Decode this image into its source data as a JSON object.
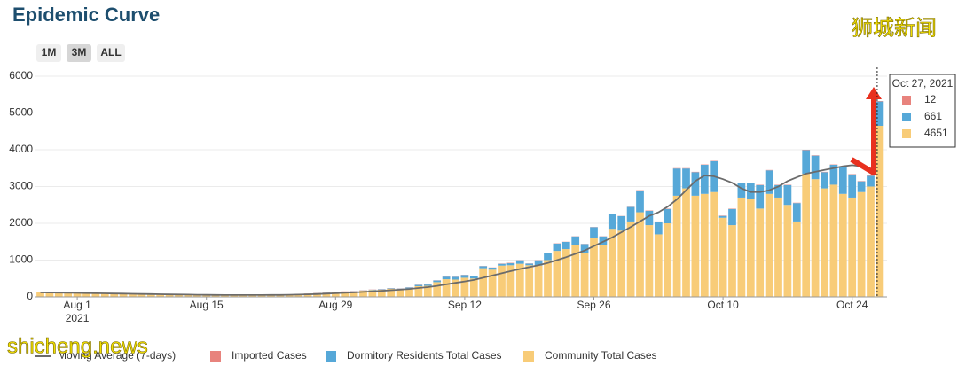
{
  "chart_data": {
    "type": "bar",
    "title": "Epidemic Curve",
    "controls": [
      "1M",
      "3M",
      "ALL"
    ],
    "active_control": 1,
    "watermark_top": "狮城新闻",
    "watermark_bottom": "shicheng.news",
    "categories": [
      "2021-07-28",
      "2021-07-29",
      "2021-07-30",
      "2021-07-31",
      "2021-08-01",
      "2021-08-02",
      "2021-08-03",
      "2021-08-04",
      "2021-08-05",
      "2021-08-06",
      "2021-08-07",
      "2021-08-08",
      "2021-08-09",
      "2021-08-10",
      "2021-08-11",
      "2021-08-12",
      "2021-08-13",
      "2021-08-14",
      "2021-08-15",
      "2021-08-16",
      "2021-08-17",
      "2021-08-18",
      "2021-08-19",
      "2021-08-20",
      "2021-08-21",
      "2021-08-22",
      "2021-08-23",
      "2021-08-24",
      "2021-08-25",
      "2021-08-26",
      "2021-08-27",
      "2021-08-28",
      "2021-08-29",
      "2021-08-30",
      "2021-08-31",
      "2021-09-01",
      "2021-09-02",
      "2021-09-03",
      "2021-09-04",
      "2021-09-05",
      "2021-09-06",
      "2021-09-07",
      "2021-09-08",
      "2021-09-09",
      "2021-09-10",
      "2021-09-11",
      "2021-09-12",
      "2021-09-13",
      "2021-09-14",
      "2021-09-15",
      "2021-09-16",
      "2021-09-17",
      "2021-09-18",
      "2021-09-19",
      "2021-09-20",
      "2021-09-21",
      "2021-09-22",
      "2021-09-23",
      "2021-09-24",
      "2021-09-25",
      "2021-09-26",
      "2021-09-27",
      "2021-09-28",
      "2021-09-29",
      "2021-09-30",
      "2021-10-01",
      "2021-10-02",
      "2021-10-03",
      "2021-10-04",
      "2021-10-05",
      "2021-10-06",
      "2021-10-07",
      "2021-10-08",
      "2021-10-09",
      "2021-10-10",
      "2021-10-11",
      "2021-10-12",
      "2021-10-13",
      "2021-10-14",
      "2021-10-15",
      "2021-10-16",
      "2021-10-17",
      "2021-10-18",
      "2021-10-19",
      "2021-10-20",
      "2021-10-21",
      "2021-10-22",
      "2021-10-23",
      "2021-10-24",
      "2021-10-25",
      "2021-10-26",
      "2021-10-27"
    ],
    "series": [
      {
        "name": "Moving Average (7-days)",
        "type": "line",
        "color": "#6b6b6b",
        "values": [
          120,
          118,
          115,
          112,
          108,
          104,
          100,
          96,
          92,
          88,
          84,
          80,
          76,
          72,
          68,
          65,
          62,
          58,
          55,
          53,
          51,
          50,
          50,
          50,
          51,
          52,
          54,
          58,
          63,
          70,
          78,
          88,
          98,
          110,
          120,
          135,
          150,
          165,
          180,
          195,
          215,
          240,
          265,
          300,
          340,
          380,
          420,
          460,
          520,
          580,
          640,
          700,
          760,
          810,
          860,
          920,
          1000,
          1080,
          1170,
          1260,
          1380,
          1500,
          1620,
          1760,
          1900,
          2050,
          2200,
          2300,
          2450,
          2650,
          2900,
          3150,
          3300,
          3280,
          3200,
          3100,
          2950,
          2850,
          2850,
          2900,
          3000,
          3150,
          3250,
          3350,
          3400,
          3450,
          3500,
          3550,
          3580,
          3550,
          3500,
          null
        ]
      },
      {
        "name": "Imported Cases",
        "color": "#e8837d",
        "values": [
          4,
          3,
          5,
          4,
          5,
          4,
          3,
          3,
          4,
          5,
          3,
          4,
          3,
          5,
          4,
          3,
          2,
          3,
          3,
          3,
          2,
          3,
          4,
          2,
          2,
          3,
          2,
          4,
          4,
          4,
          5,
          4,
          4,
          5,
          6,
          5,
          5,
          5,
          5,
          5,
          5,
          5,
          5,
          5,
          10,
          5,
          5,
          5,
          5,
          5,
          7,
          10,
          5,
          5,
          5,
          5,
          7,
          5,
          5,
          5,
          5,
          5,
          5,
          5,
          5,
          10,
          10,
          10,
          10,
          10,
          10,
          10,
          10,
          10,
          10,
          10,
          10,
          10,
          10,
          10,
          10,
          10,
          10,
          10,
          10,
          10,
          10,
          10,
          10,
          10,
          10,
          12
        ]
      },
      {
        "name": "Dormitory Residents Total Cases",
        "color": "#56a8d8",
        "values": [
          1,
          2,
          0,
          1,
          0,
          1,
          0,
          2,
          1,
          0,
          1,
          0,
          2,
          1,
          0,
          1,
          2,
          0,
          1,
          2,
          1,
          2,
          1,
          2,
          1,
          2,
          3,
          2,
          4,
          3,
          5,
          6,
          8,
          7,
          6,
          5,
          10,
          10,
          15,
          15,
          25,
          35,
          35,
          45,
          70,
          75,
          75,
          55,
          55,
          55,
          50,
          55,
          95,
          45,
          145,
          195,
          200,
          195,
          245,
          235,
          295,
          245,
          395,
          395,
          395,
          590,
          390,
          340,
          390,
          740,
          540,
          640,
          790,
          840,
          50,
          440,
          390,
          440,
          640,
          640,
          340,
          540,
          500,
          640,
          640,
          440,
          540,
          740,
          630,
          290,
          290,
          661
        ]
      },
      {
        "name": "Community Total Cases",
        "color": "#f8cc78",
        "values": [
          125,
          115,
          110,
          105,
          100,
          95,
          90,
          85,
          80,
          75,
          70,
          65,
          58,
          56,
          52,
          50,
          48,
          47,
          46,
          45,
          42,
          45,
          50,
          46,
          47,
          50,
          55,
          64,
          72,
          88,
          100,
          110,
          128,
          138,
          148,
          170,
          185,
          195,
          220,
          210,
          230,
          290,
          300,
          400,
          480,
          470,
          520,
          500,
          780,
          740,
          850,
          860,
          900,
          860,
          850,
          1000,
          1250,
          1300,
          1400,
          1200,
          1600,
          1400,
          1850,
          1800,
          2050,
          2300,
          1950,
          1700,
          2000,
          2750,
          2950,
          2750,
          2800,
          2850,
          2150,
          1950,
          2700,
          2650,
          2400,
          2800,
          2700,
          2500,
          2050,
          3350,
          3200,
          2950,
          3050,
          2800,
          2700,
          2850,
          3000,
          4651
        ]
      }
    ],
    "ylim": [
      0,
      6000
    ],
    "yticks": [
      0,
      1000,
      2000,
      3000,
      4000,
      5000,
      6000
    ],
    "grid": true,
    "xticks": [
      {
        "value": "2021-08-01",
        "label": "Aug 1"
      },
      {
        "value": "2021-08-15",
        "label": "Aug 15"
      },
      {
        "value": "2021-08-29",
        "label": "Aug 29"
      },
      {
        "value": "2021-09-12",
        "label": "Sep 12"
      },
      {
        "value": "2021-09-26",
        "label": "Sep 26"
      },
      {
        "value": "2021-10-10",
        "label": "Oct 10"
      },
      {
        "value": "2021-10-24",
        "label": "Oct 24"
      }
    ],
    "x_year_label": "2021",
    "tooltip": {
      "title": "Oct 27, 2021",
      "index": 91
    },
    "legend": "bottom"
  }
}
